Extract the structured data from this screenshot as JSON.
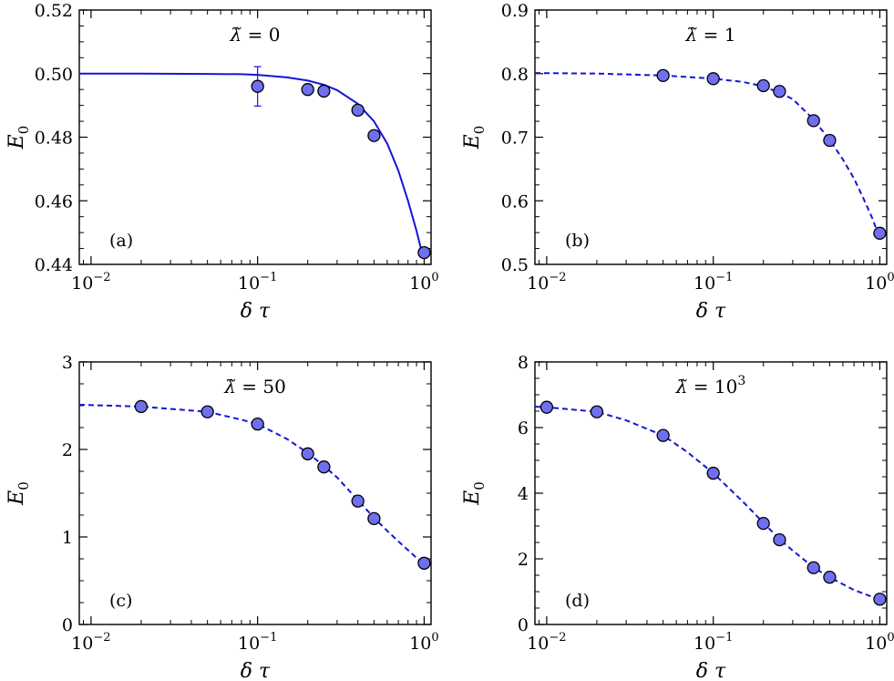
{
  "chart_data": [
    {
      "type": "scatter",
      "panel_label": "(a)",
      "title": "λ̃ = 0",
      "title_symbol": "λ̃",
      "title_value": "0",
      "title_exponent": "",
      "xlabel": "δ τ",
      "ylabel": "E0",
      "ylabel_main": "E",
      "ylabel_sub": "0",
      "xscale": "log",
      "xlim": [
        0.0085,
        1.1
      ],
      "ylim": [
        0.44,
        0.52
      ],
      "x_ticks": [
        0.01,
        0.1,
        1
      ],
      "x_tick_exponents": [
        "−2",
        "−1",
        "0"
      ],
      "y_ticks": [
        0.44,
        0.46,
        0.48,
        0.5,
        0.52
      ],
      "y_tick_labels": [
        "0.44",
        "0.46",
        "0.48",
        "0.50",
        "0.52"
      ],
      "grid": false,
      "series": [
        {
          "kind": "points",
          "x": [
            0.1,
            0.2,
            0.25,
            0.4,
            0.5,
            1.0
          ],
          "y": [
            0.496,
            0.495,
            0.4945,
            0.4885,
            0.4805,
            0.4437
          ],
          "yerr": [
            0.0062,
            0.0015,
            0.0015,
            0.0008,
            0.0008,
            0.0005
          ]
        },
        {
          "kind": "curve",
          "style": "solid",
          "x": [
            0.0085,
            0.02,
            0.05,
            0.08,
            0.1,
            0.15,
            0.2,
            0.25,
            0.3,
            0.4,
            0.5,
            0.6,
            0.7,
            0.8,
            0.9,
            0.97
          ],
          "y": [
            0.5,
            0.5,
            0.4999,
            0.4998,
            0.4996,
            0.4988,
            0.4978,
            0.4965,
            0.4948,
            0.4905,
            0.485,
            0.478,
            0.4695,
            0.46,
            0.4505,
            0.4437
          ]
        }
      ]
    },
    {
      "type": "scatter",
      "panel_label": "(b)",
      "title": "λ̃ = 1",
      "title_symbol": "λ̃",
      "title_value": "1",
      "title_exponent": "",
      "xlabel": "δ τ",
      "ylabel": "E0",
      "ylabel_main": "E",
      "ylabel_sub": "0",
      "xscale": "log",
      "xlim": [
        0.0085,
        1.1
      ],
      "ylim": [
        0.5,
        0.9
      ],
      "x_ticks": [
        0.01,
        0.1,
        1
      ],
      "x_tick_exponents": [
        "−2",
        "−1",
        "0"
      ],
      "y_ticks": [
        0.5,
        0.6,
        0.7,
        0.8,
        0.9
      ],
      "y_tick_labels": [
        "0.5",
        "0.6",
        "0.7",
        "0.8",
        "0.9"
      ],
      "grid": false,
      "series": [
        {
          "kind": "points",
          "x": [
            0.05,
            0.1,
            0.2,
            0.25,
            0.4,
            0.5,
            1.0
          ],
          "y": [
            0.797,
            0.792,
            0.781,
            0.772,
            0.726,
            0.695,
            0.549
          ]
        },
        {
          "kind": "curve",
          "style": "dashed",
          "x": [
            0.0085,
            0.02,
            0.05,
            0.1,
            0.15,
            0.2,
            0.25,
            0.3,
            0.4,
            0.5,
            0.6,
            0.7,
            0.8,
            0.9,
            0.97
          ],
          "y": [
            0.801,
            0.8,
            0.797,
            0.792,
            0.787,
            0.78,
            0.77,
            0.76,
            0.728,
            0.696,
            0.665,
            0.635,
            0.603,
            0.573,
            0.55
          ]
        }
      ]
    },
    {
      "type": "scatter",
      "panel_label": "(c)",
      "title": "λ̃ = 50",
      "title_symbol": "λ̃",
      "title_value": "50",
      "title_exponent": "",
      "xlabel": "δ τ",
      "ylabel": "E0",
      "ylabel_main": "E",
      "ylabel_sub": "0",
      "xscale": "log",
      "xlim": [
        0.0085,
        1.1
      ],
      "ylim": [
        0,
        3
      ],
      "x_ticks": [
        0.01,
        0.1,
        1
      ],
      "x_tick_exponents": [
        "−2",
        "−1",
        "0"
      ],
      "y_ticks": [
        0,
        1,
        2,
        3
      ],
      "y_tick_labels": [
        "0",
        "1",
        "2",
        "3"
      ],
      "grid": false,
      "series": [
        {
          "kind": "points",
          "x": [
            0.02,
            0.05,
            0.1,
            0.2,
            0.25,
            0.4,
            0.5,
            1.0
          ],
          "y": [
            2.49,
            2.43,
            2.29,
            1.95,
            1.8,
            1.41,
            1.21,
            0.7
          ]
        },
        {
          "kind": "curve",
          "style": "dashed",
          "x": [
            0.0085,
            0.02,
            0.05,
            0.08,
            0.1,
            0.15,
            0.2,
            0.25,
            0.3,
            0.4,
            0.5,
            0.6,
            0.7,
            0.8,
            0.9,
            0.97
          ],
          "y": [
            2.51,
            2.49,
            2.43,
            2.34,
            2.29,
            2.12,
            1.96,
            1.81,
            1.68,
            1.42,
            1.22,
            1.07,
            0.95,
            0.85,
            0.76,
            0.7
          ]
        }
      ]
    },
    {
      "type": "scatter",
      "panel_label": "(d)",
      "title": "λ̃ = 10^3",
      "title_symbol": "λ̃",
      "title_value": "10",
      "title_exponent": "3",
      "xlabel": "δ τ",
      "ylabel": "E0",
      "ylabel_main": "E",
      "ylabel_sub": "0",
      "xscale": "log",
      "xlim": [
        0.0085,
        1.1
      ],
      "ylim": [
        0,
        8
      ],
      "x_ticks": [
        0.01,
        0.1,
        1
      ],
      "x_tick_exponents": [
        "−2",
        "−1",
        "0"
      ],
      "y_ticks": [
        0,
        2,
        4,
        6,
        8
      ],
      "y_tick_labels": [
        "0",
        "2",
        "4",
        "6",
        "8"
      ],
      "grid": false,
      "series": [
        {
          "kind": "points",
          "x": [
            0.01,
            0.02,
            0.05,
            0.1,
            0.2,
            0.25,
            0.4,
            0.5,
            1.0
          ],
          "y": [
            6.62,
            6.48,
            5.76,
            4.61,
            3.08,
            2.58,
            1.73,
            1.44,
            0.77
          ]
        },
        {
          "kind": "curve",
          "style": "dashed",
          "x": [
            0.0085,
            0.01,
            0.02,
            0.03,
            0.05,
            0.07,
            0.1,
            0.15,
            0.2,
            0.25,
            0.3,
            0.4,
            0.5,
            0.7,
            0.97
          ],
          "y": [
            6.64,
            6.62,
            6.48,
            6.22,
            5.76,
            5.25,
            4.61,
            3.75,
            3.1,
            2.6,
            2.25,
            1.74,
            1.44,
            1.05,
            0.78
          ]
        }
      ]
    }
  ]
}
